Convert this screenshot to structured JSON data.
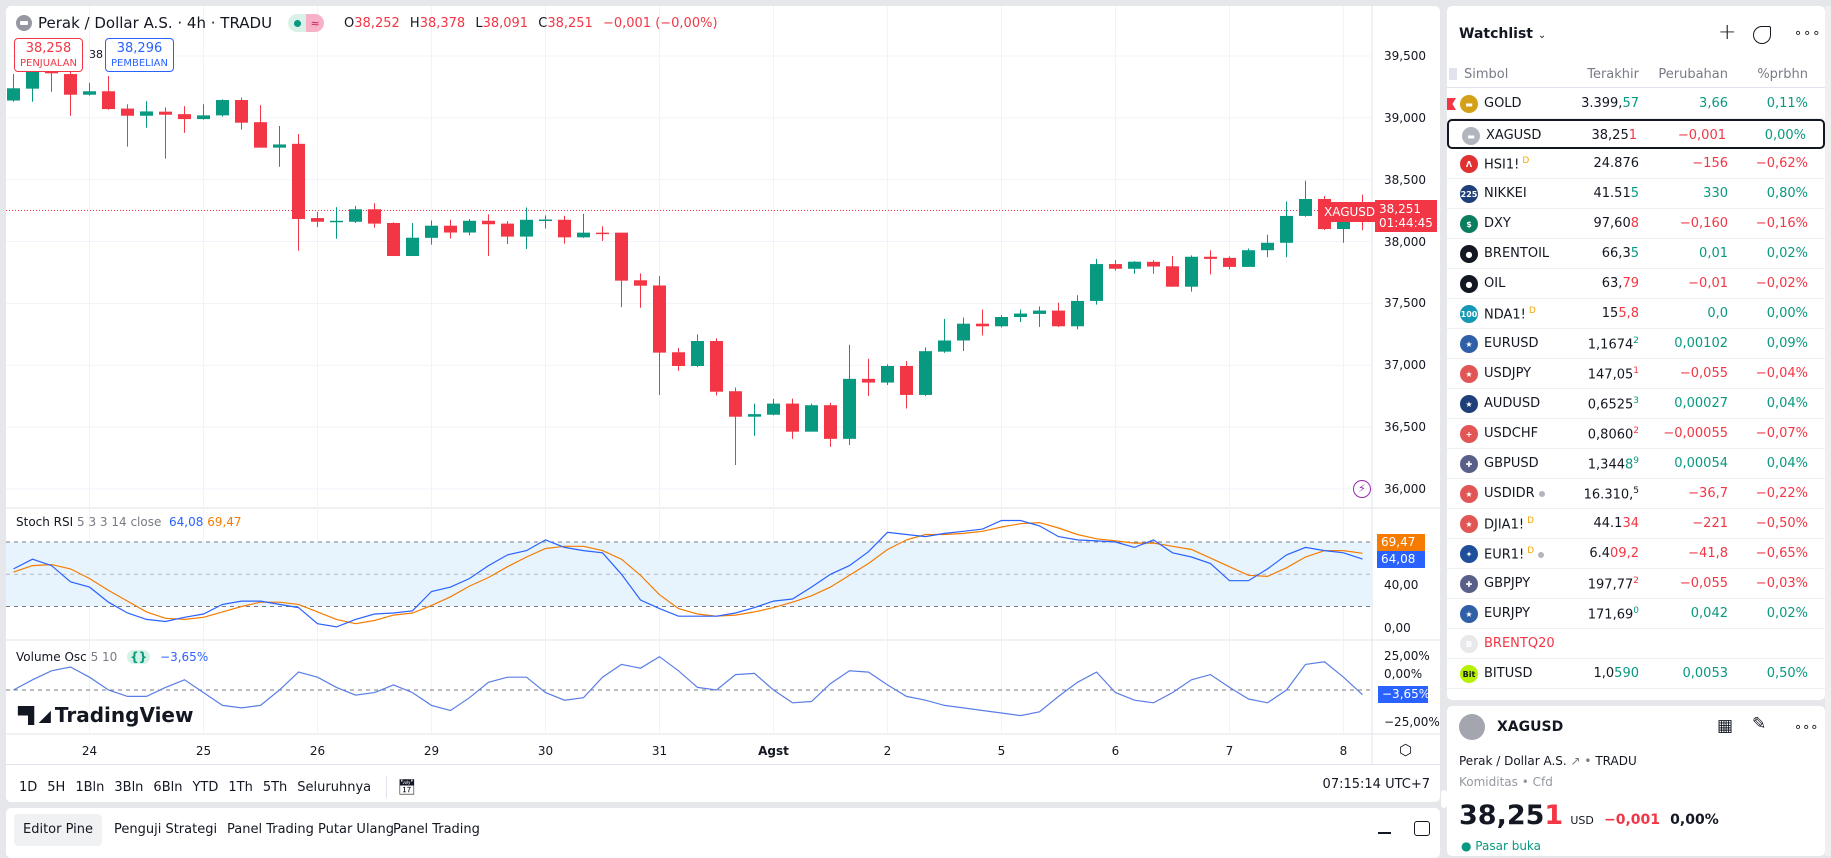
{
  "header": {
    "title": "Perak / Dollar A.S. · 4h · TRADU",
    "open_label": "O",
    "open": "38,252",
    "high_label": "H",
    "high": "38,378",
    "low_label": "L",
    "low": "38,091",
    "close_label": "C",
    "close": "38,251",
    "change": "−0,001 (−0,00%)",
    "market_glyph": "≈"
  },
  "trade": {
    "sell_price": "38,258",
    "sell_label": "PENJUALAN",
    "spread": "38",
    "buy_price": "38,296",
    "buy_label": "PEMBELIAN"
  },
  "price_axis": [
    "39,500",
    "39,000",
    "38,500",
    "38,000",
    "37,500",
    "37,000",
    "36,500",
    "36,000"
  ],
  "last_tag": {
    "symbol": "XAGUSD",
    "price": "38,251",
    "countdown": "01:44:45"
  },
  "stoch": {
    "name": "Stoch RSI",
    "params": "5 3 3 14 close",
    "k_value": "64,08",
    "d_value": "69,47",
    "axis": [
      "40,00",
      "0,00"
    ]
  },
  "volosc": {
    "name": "Volume Osc",
    "params": "5 10",
    "value": "−3,65%",
    "axis": [
      "25,00%",
      "0,00%",
      "−25,00%"
    ]
  },
  "logo": "TradingView",
  "time_axis": [
    {
      "label": "24",
      "i": 4
    },
    {
      "label": "25",
      "i": 10
    },
    {
      "label": "26",
      "i": 16
    },
    {
      "label": "29",
      "i": 22
    },
    {
      "label": "30",
      "i": 28
    },
    {
      "label": "31",
      "i": 34
    },
    {
      "label": "Agst",
      "i": 40
    },
    {
      "label": "2",
      "i": 46
    },
    {
      "label": "5",
      "i": 52
    },
    {
      "label": "6",
      "i": 58
    },
    {
      "label": "7",
      "i": 64
    },
    {
      "label": "8",
      "i": 70
    }
  ],
  "ranges": [
    "1D",
    "5H",
    "1Bln",
    "3Bln",
    "6Bln",
    "YTD",
    "1Th",
    "5Th",
    "Seluruhnya"
  ],
  "clock": "07:15:14 UTC+7",
  "bottom_tabs": [
    "Editor Pine",
    "Penguji Strategi",
    "Panel Trading Putar Ulang",
    "Panel Trading"
  ],
  "colors": {
    "up": "#089981",
    "down": "#f23645",
    "k": "#2962ff",
    "d": "#f57c00"
  },
  "chart_data": {
    "type": "candlestick",
    "symbol": "XAGUSD",
    "interval": "4h",
    "ylim": [
      35900,
      39700
    ],
    "yticks": [
      39500,
      39000,
      38500,
      38000,
      37500,
      37000,
      36500,
      36000
    ],
    "last_price": 38251,
    "ohlc": [
      [
        39140,
        39354,
        39130,
        39239
      ],
      [
        39236,
        39390,
        39130,
        39373
      ],
      [
        39380,
        39400,
        39211,
        39360
      ],
      [
        39354,
        39380,
        39017,
        39187
      ],
      [
        39187,
        39283,
        39180,
        39215
      ],
      [
        39215,
        39338,
        39065,
        39071
      ],
      [
        39075,
        39110,
        38767,
        39017
      ],
      [
        39017,
        39135,
        38920,
        39052
      ],
      [
        39050,
        39085,
        38670,
        39025
      ],
      [
        39030,
        39095,
        38880,
        38990
      ],
      [
        38990,
        39110,
        38985,
        39020
      ],
      [
        39020,
        39150,
        39010,
        39144
      ],
      [
        39144,
        39165,
        38905,
        38961
      ],
      [
        38965,
        39103,
        38759,
        38759
      ],
      [
        38759,
        38934,
        38605,
        38785
      ],
      [
        38790,
        38869,
        37926,
        38182
      ],
      [
        38190,
        38240,
        38118,
        38160
      ],
      [
        38160,
        38278,
        38023,
        38168
      ],
      [
        38160,
        38288,
        38150,
        38261
      ],
      [
        38261,
        38310,
        38113,
        38145
      ],
      [
        38150,
        38155,
        37883,
        37883
      ],
      [
        37883,
        38150,
        37883,
        38031
      ],
      [
        38030,
        38170,
        37975,
        38128
      ],
      [
        38128,
        38176,
        38025,
        38073
      ],
      [
        38073,
        38182,
        38050,
        38168
      ],
      [
        38168,
        38220,
        37883,
        38140
      ],
      [
        38145,
        38165,
        37980,
        38040
      ],
      [
        38040,
        38275,
        37940,
        38176
      ],
      [
        38170,
        38212,
        38105,
        38178
      ],
      [
        38176,
        38208,
        37983,
        38034
      ],
      [
        38034,
        38224,
        38030,
        38072
      ],
      [
        38072,
        38124,
        38005,
        38064
      ],
      [
        38072,
        38072,
        37470,
        37684
      ],
      [
        37687,
        37743,
        37465,
        37643
      ],
      [
        37645,
        37720,
        36760,
        37102
      ],
      [
        37105,
        37140,
        36955,
        36994
      ],
      [
        36994,
        37250,
        36985,
        37196
      ],
      [
        37196,
        37218,
        36755,
        36786
      ],
      [
        36790,
        36820,
        36194,
        36584
      ],
      [
        36584,
        36690,
        36430,
        36605
      ],
      [
        36600,
        36728,
        36595,
        36690
      ],
      [
        36690,
        36730,
        36405,
        36463
      ],
      [
        36463,
        36690,
        36463,
        36677
      ],
      [
        36677,
        36698,
        36340,
        36405
      ],
      [
        36405,
        37166,
        36355,
        36890
      ],
      [
        36890,
        37053,
        36752,
        36860
      ],
      [
        36860,
        37007,
        36840,
        36994
      ],
      [
        36994,
        37034,
        36650,
        36760
      ],
      [
        36760,
        37145,
        36750,
        37114
      ],
      [
        37110,
        37375,
        37100,
        37200
      ],
      [
        37200,
        37385,
        37115,
        37336
      ],
      [
        37336,
        37450,
        37240,
        37315
      ],
      [
        37315,
        37405,
        37305,
        37390
      ],
      [
        37390,
        37450,
        37350,
        37418
      ],
      [
        37415,
        37475,
        37310,
        37442
      ],
      [
        37442,
        37505,
        37310,
        37315
      ],
      [
        37315,
        37566,
        37290,
        37520
      ],
      [
        37520,
        37860,
        37490,
        37818
      ],
      [
        37818,
        37850,
        37765,
        37780
      ],
      [
        37780,
        37842,
        37740,
        37837
      ],
      [
        37836,
        37850,
        37740,
        37798
      ],
      [
        37800,
        37883,
        37635,
        37635
      ],
      [
        37635,
        37888,
        37595,
        37877
      ],
      [
        37877,
        37930,
        37735,
        37860
      ],
      [
        37868,
        37880,
        37775,
        37795
      ],
      [
        37795,
        37944,
        37795,
        37930
      ],
      [
        37930,
        38055,
        37873,
        37990
      ],
      [
        37990,
        38325,
        37873,
        38207
      ],
      [
        38207,
        38492,
        38200,
        38344
      ],
      [
        38344,
        38368,
        38093,
        38101
      ],
      [
        38101,
        38250,
        37990,
        38200
      ],
      [
        38252,
        38378,
        38091,
        38251
      ]
    ],
    "stoch_k": [
      55,
      64,
      58,
      43,
      38,
      24,
      14,
      8,
      6,
      10,
      13,
      22,
      25,
      25,
      22,
      19,
      4,
      1,
      8,
      13,
      14,
      16,
      34,
      38,
      46,
      58,
      68,
      72,
      82,
      75,
      72,
      70,
      50,
      26,
      18,
      11,
      11,
      11,
      14,
      19,
      25,
      27,
      38,
      50,
      58,
      71,
      89,
      87,
      85,
      88,
      90,
      92,
      100,
      100,
      95,
      85,
      82,
      81,
      80,
      75,
      82,
      70,
      66,
      60,
      44,
      44,
      55,
      68,
      75,
      72,
      70,
      64.08
    ],
    "stoch_d": [
      52,
      58,
      59,
      55,
      46,
      35,
      25,
      15,
      9,
      8,
      10,
      15,
      20,
      24,
      24,
      22,
      15,
      8,
      4,
      7,
      12,
      14,
      21,
      29,
      39,
      47,
      57,
      66,
      74,
      76,
      76,
      72,
      64,
      49,
      31,
      18,
      13,
      11,
      12,
      15,
      19,
      24,
      30,
      38,
      49,
      60,
      73,
      82,
      87,
      87,
      88,
      90,
      94,
      97,
      98,
      93,
      87,
      83,
      81,
      79,
      79,
      76,
      73,
      65,
      57,
      49,
      48,
      56,
      66,
      72,
      72,
      69.47
    ],
    "stoch_bands": [
      80,
      50,
      20
    ],
    "volume_osc": [
      0,
      8,
      15,
      18,
      10,
      0,
      -5,
      -5,
      2,
      8,
      -2,
      -12,
      -14,
      -12,
      0,
      14,
      10,
      2,
      -4,
      -2,
      4,
      -2,
      -12,
      -16,
      -6,
      6,
      10,
      10,
      -2,
      -8,
      -6,
      10,
      20,
      17,
      26,
      15,
      2,
      0,
      12,
      13,
      0,
      -10,
      -9,
      5,
      15,
      14,
      4,
      -5,
      -8,
      -12,
      -14,
      -16,
      -18,
      -20,
      -17,
      -5,
      6,
      14,
      -2,
      -8,
      -10,
      -2,
      8,
      12,
      2,
      -7,
      -10,
      0,
      20,
      22,
      10,
      -3.65
    ]
  },
  "watchlist": {
    "title": "Watchlist",
    "columns": [
      "Simbol",
      "Terakhir",
      "Perubahan",
      "%prbhn"
    ],
    "rows": [
      {
        "sym": "GOLD",
        "ico": "gold-bar-icon",
        "bg": "#d4a017",
        "g": "▬",
        "last": "3.399,",
        "hi": "57",
        "sup": "",
        "dir": "up",
        "chg": "3,66",
        "pct": "0,11%",
        "flag": true
      },
      {
        "sym": "XAGUSD",
        "ico": "silver-bar-icon",
        "bg": "#b2b5be",
        "g": "▬",
        "last": "38,25",
        "hi": "1",
        "sup": "",
        "dir": "dn",
        "chg": "−0,001",
        "pct": "0,00%",
        "pctdir": "up",
        "selected": true
      },
      {
        "sym": "HSI1!",
        "ico": "hsi-icon",
        "bg": "#e03131",
        "g": "Λ",
        "last": "24.876",
        "hi": "",
        "sup": "",
        "dir": "dn",
        "chg": "−156",
        "pct": "−0,62%",
        "badge": "D"
      },
      {
        "sym": "NIKKEI",
        "ico": "nikkei-225-icon",
        "bg": "#1e3f7a",
        "g": "225",
        "last": "41.51",
        "hi": "5",
        "sup": "",
        "dir": "up",
        "chg": "330",
        "pct": "0,80%"
      },
      {
        "sym": "DXY",
        "ico": "dollar-icon",
        "bg": "#0b7d5f",
        "g": "$",
        "last": "97,60",
        "hi": "8",
        "sup": "",
        "dir": "dn",
        "chg": "−0,160",
        "pct": "−0,16%"
      },
      {
        "sym": "BRENTOIL",
        "ico": "oil-drop-icon",
        "bg": "#131722",
        "g": "●",
        "last": "66,3",
        "hi": "5",
        "sup": "",
        "dir": "up",
        "chg": "0,01",
        "pct": "0,02%"
      },
      {
        "sym": "OIL",
        "ico": "oil-drop-icon",
        "bg": "#131722",
        "g": "●",
        "last": "63,",
        "hi": "79",
        "sup": "",
        "dir": "dn",
        "chg": "−0,01",
        "pct": "−0,02%"
      },
      {
        "sym": "NDA1!",
        "ico": "nasdaq-100-icon",
        "bg": "#1598b5",
        "g": "100",
        "last": "15",
        "hi": "5,8",
        "sup": "",
        "dir": "dn",
        "chgdir": "up",
        "chg": "0,0",
        "pct": "0,00%",
        "badge": "D"
      },
      {
        "sym": "EURUSD",
        "ico": "eu-us-flag-icon",
        "bg": "#2f5fa7",
        "g": "★",
        "last": "1,1674",
        "hi": "",
        "sup": "2",
        "dir": "up",
        "chg": "0,00102",
        "pct": "0,09%"
      },
      {
        "sym": "USDJPY",
        "ico": "us-jp-flag-icon",
        "bg": "#e25555",
        "g": "★",
        "last": "147,05",
        "hi": "",
        "sup": "1",
        "dir": "dn",
        "chg": "−0,055",
        "pct": "−0,04%"
      },
      {
        "sym": "AUDUSD",
        "ico": "au-us-flag-icon",
        "bg": "#1e3f7a",
        "g": "★",
        "last": "0,6525",
        "hi": "",
        "sup": "3",
        "dir": "up",
        "chg": "0,00027",
        "pct": "0,04%"
      },
      {
        "sym": "USDCHF",
        "ico": "us-ch-flag-icon",
        "bg": "#e25555",
        "g": "+",
        "last": "0,8060",
        "hi": "",
        "sup": "2",
        "dir": "dn",
        "chg": "−0,00055",
        "pct": "−0,07%"
      },
      {
        "sym": "GBPUSD",
        "ico": "gb-us-flag-icon",
        "bg": "#5a5f8a",
        "g": "✚",
        "last": "1,344",
        "hi": "8",
        "sup": "9",
        "dir": "up",
        "chg": "0,00054",
        "pct": "0,04%"
      },
      {
        "sym": "USDIDR",
        "ico": "us-id-flag-icon",
        "bg": "#e25555",
        "g": "★",
        "last": "16.310,",
        "hi": "",
        "sup": "5",
        "dir": "none",
        "chgdir": "dn",
        "chg": "−36,7",
        "pct": "−0,22%",
        "dot": true
      },
      {
        "sym": "DJIA1!",
        "ico": "us-flag-icon",
        "bg": "#e25555",
        "g": "★",
        "last": "44.1",
        "hi": "34",
        "sup": "",
        "dir": "dn",
        "chg": "−221",
        "pct": "−0,50%",
        "badge": "D"
      },
      {
        "sym": "EUR1!",
        "ico": "eu-flag-icon",
        "bg": "#1f4e9a",
        "g": "✦",
        "last": "6.4",
        "hi": "09,2",
        "sup": "",
        "dir": "dn",
        "chg": "−41,8",
        "pct": "−0,65%",
        "badge": "D",
        "dot": true
      },
      {
        "sym": "GBPJPY",
        "ico": "gb-jp-flag-icon",
        "bg": "#5a5f8a",
        "g": "✚",
        "last": "197,77",
        "hi": "",
        "sup": "2",
        "dir": "dn",
        "chg": "−0,055",
        "pct": "−0,03%"
      },
      {
        "sym": "EURJPY",
        "ico": "eu-jp-flag-icon",
        "bg": "#2f5fa7",
        "g": "★",
        "last": "171,69",
        "hi": "",
        "sup": "0",
        "dir": "up",
        "chg": "0,042",
        "pct": "0,02%"
      },
      {
        "sym": "BRENTQ20",
        "ico": "brent-icon",
        "bg": "#e9e9ec",
        "g": "B",
        "last": "",
        "hi": "",
        "sup": "",
        "dir": "none",
        "chg": "",
        "pct": "",
        "expired": true
      },
      {
        "sym": "BITUSD",
        "ico": "bit-icon",
        "bg": "#b7f000",
        "g": "Bit",
        "last": "1,0",
        "hi": "590",
        "sup": "",
        "dir": "up",
        "chg": "0,0053",
        "pct": "0,50%"
      }
    ]
  },
  "detail": {
    "symbol": "XAGUSD",
    "name": "Perak / Dollar A.S.",
    "exchange": "TRADU",
    "category": "Komiditas",
    "type": "Cfd",
    "price_main": "38,25",
    "price_hi": "1",
    "currency": "USD",
    "change": "−0,001",
    "change_pct": "0,00%",
    "status": "Pasar buka"
  }
}
